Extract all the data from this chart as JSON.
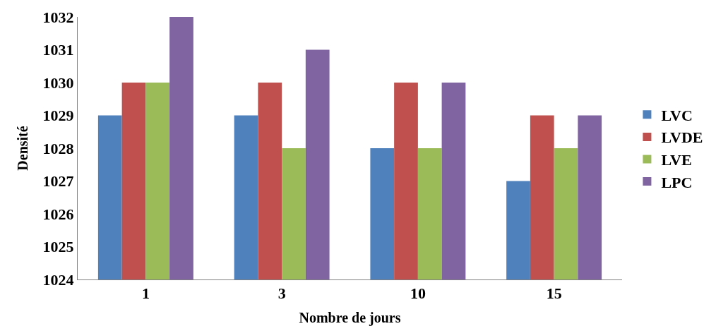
{
  "chart_data": {
    "type": "bar",
    "xlabel": "Nombre de jours",
    "ylabel": "Densité",
    "categories": [
      "1",
      "3",
      "10",
      "15"
    ],
    "series": [
      {
        "name": "LVC",
        "color": "#4f81bd",
        "values": [
          1029,
          1029,
          1028,
          1027
        ]
      },
      {
        "name": "LVDE",
        "color": "#c0504d",
        "values": [
          1030,
          1030,
          1030,
          1029
        ]
      },
      {
        "name": "LVE",
        "color": "#9bbb59",
        "values": [
          1030,
          1028,
          1028,
          1028
        ]
      },
      {
        "name": "LPC",
        "color": "#8064a2",
        "values": [
          1032,
          1031,
          1030,
          1029
        ]
      }
    ],
    "ylim": [
      1024,
      1032
    ],
    "yticks": [
      1024,
      1025,
      1026,
      1027,
      1028,
      1029,
      1030,
      1031,
      1032
    ],
    "legend": "right"
  }
}
